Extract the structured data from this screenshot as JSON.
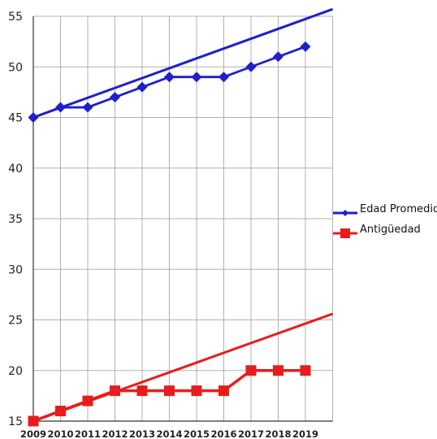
{
  "chart_data": {
    "type": "line",
    "title": "",
    "xlabel": "",
    "ylabel": "",
    "categories": [
      "2009",
      "2010",
      "2011",
      "2012",
      "2013",
      "2014",
      "2015",
      "2016",
      "2017",
      "2018",
      "2019"
    ],
    "ylim": [
      15,
      55
    ],
    "yticks": [
      15,
      20,
      25,
      30,
      35,
      40,
      45,
      50,
      55
    ],
    "grid": true,
    "legend_placement": "right",
    "series": [
      {
        "name": "Edad Promedio",
        "color": "#1f1fcc",
        "marker": "diamond",
        "values": [
          45,
          46,
          46,
          47,
          48,
          49,
          49,
          49,
          50,
          51,
          52
        ],
        "trendline": {
          "start": 45,
          "end": 55.7
        }
      },
      {
        "name": "Antigüedad",
        "color": "#e81c1c",
        "marker": "square",
        "values": [
          15,
          16,
          17,
          18,
          18,
          18,
          18,
          18,
          20,
          20,
          20
        ],
        "trendline": {
          "start": 15,
          "end": 25.6
        }
      }
    ]
  }
}
